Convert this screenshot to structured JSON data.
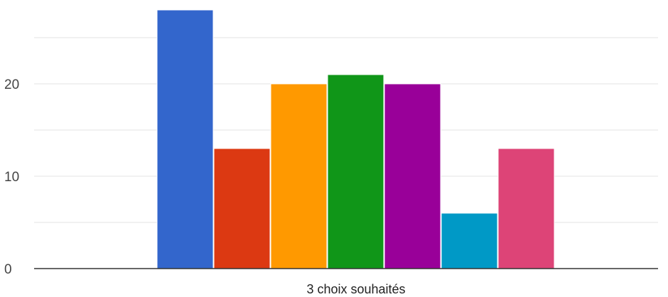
{
  "chart_data": {
    "type": "bar",
    "categories": [
      "3 choix souhaités"
    ],
    "series": [
      {
        "color": "#3366cc",
        "values": [
          28
        ]
      },
      {
        "color": "#dc3912",
        "values": [
          13
        ]
      },
      {
        "color": "#ff9900",
        "values": [
          20
        ]
      },
      {
        "color": "#109618",
        "values": [
          21
        ]
      },
      {
        "color": "#990099",
        "values": [
          20
        ]
      },
      {
        "color": "#0099c6",
        "values": [
          6
        ]
      },
      {
        "color": "#dd4477",
        "values": [
          13
        ]
      }
    ],
    "y_ticks": [
      0,
      10,
      20
    ],
    "y_tick_labels": [
      "0",
      "10",
      "20"
    ],
    "ylim": [
      0,
      30
    ],
    "grid": true,
    "minor_grid": true,
    "legend": "none"
  }
}
